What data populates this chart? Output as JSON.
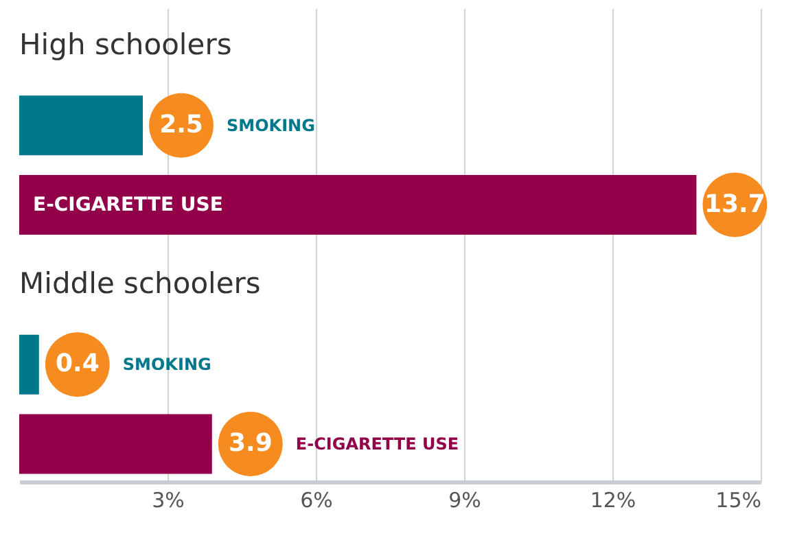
{
  "chart_data": {
    "type": "bar",
    "orientation": "horizontal",
    "categories": [
      "High schoolers",
      "Middle schoolers"
    ],
    "series": [
      {
        "name": "SMOKING",
        "color": "#00788c",
        "values": [
          2.5,
          0.4
        ]
      },
      {
        "name": "E-CIGARETTE USE",
        "color": "#93004a",
        "values": [
          13.7,
          3.9
        ]
      }
    ],
    "data_labels": true,
    "xlim": [
      0,
      15
    ],
    "xticks": [
      {
        "value": 3,
        "label": "3%"
      },
      {
        "value": 6,
        "label": "6%"
      },
      {
        "value": 9,
        "label": "9%"
      },
      {
        "value": 12,
        "label": "12%"
      },
      {
        "value": 15,
        "label": "15%"
      }
    ],
    "grid": "x"
  }
}
